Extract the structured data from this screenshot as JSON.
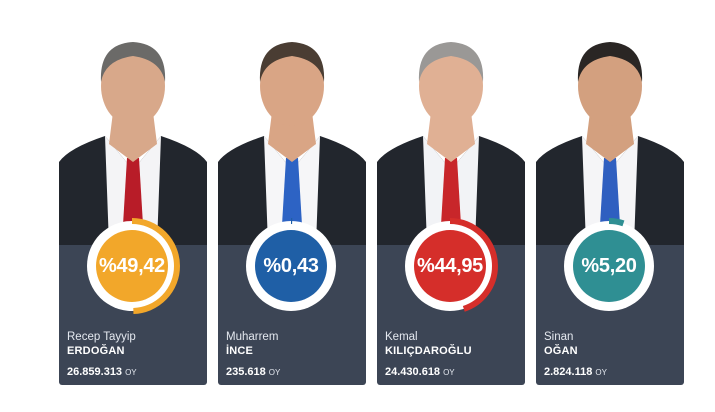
{
  "candidates": [
    {
      "first_name": "Recep Tayyip",
      "last_name": "ERDOĞAN",
      "percent_label": "%49,42",
      "percent_value": 49.42,
      "votes": "26.859.313",
      "vote_unit": "OY",
      "badge_color": "#f2a72a",
      "tie_color": "#b81c28"
    },
    {
      "first_name": "Muharrem",
      "last_name": "İNCE",
      "percent_label": "%0,43",
      "percent_value": 0.43,
      "votes": "235.618",
      "vote_unit": "OY",
      "badge_color": "#1f5fa6",
      "tie_color": "#2d63c4"
    },
    {
      "first_name": "Kemal",
      "last_name": "KILIÇDAROĞLU",
      "percent_label": "%44,95",
      "percent_value": 44.95,
      "votes": "24.430.618",
      "vote_unit": "OY",
      "badge_color": "#d52e2a",
      "tie_color": "#c8262a"
    },
    {
      "first_name": "Sinan",
      "last_name": "OĞAN",
      "percent_label": "%5,20",
      "percent_value": 5.2,
      "votes": "2.824.118",
      "vote_unit": "OY",
      "badge_color": "#2f8f93",
      "tie_color": "#2f5fc0"
    }
  ],
  "colors": {
    "panel": "#3c4555",
    "ring_track": "#ffffff"
  }
}
